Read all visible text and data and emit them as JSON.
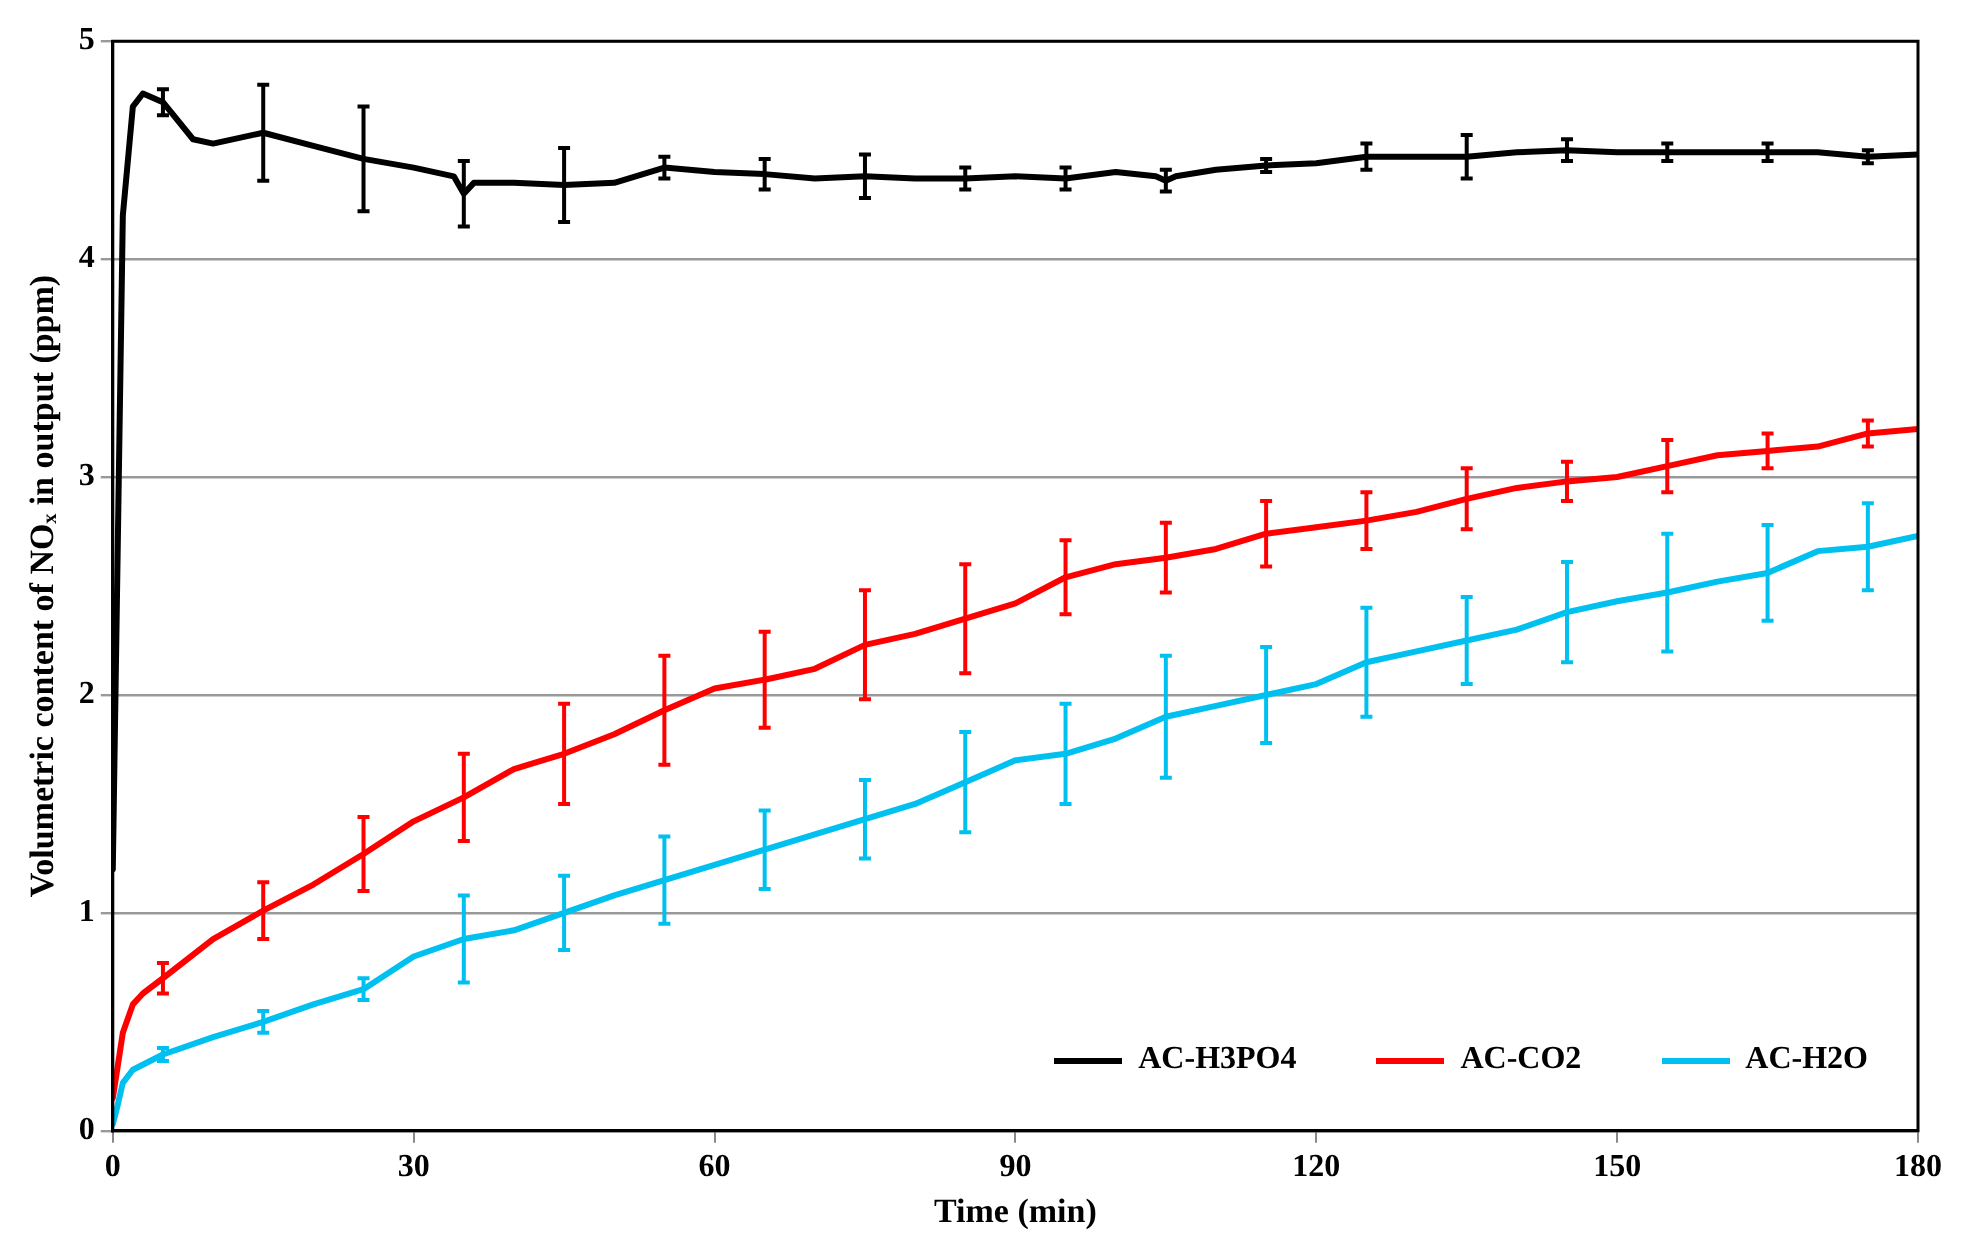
{
  "chart_data": {
    "type": "line",
    "xlabel": "Time (min)",
    "ylabel": "Volumetric content of NOₓ in output (ppm)",
    "xlim": [
      0,
      180
    ],
    "xticks": [
      0,
      30,
      60,
      90,
      120,
      150,
      180
    ],
    "ylim": [
      0,
      5
    ],
    "yticks": [
      0,
      1,
      2,
      3,
      4,
      5
    ],
    "grid": "y",
    "legend": "bottom right",
    "marker": "none",
    "line_style": "solid",
    "series": [
      {
        "name": "AC-H3PO4",
        "color": "#000000",
        "x": [
          0,
          1,
          2,
          3,
          5,
          8,
          10,
          15,
          20,
          25,
          30,
          34,
          35,
          36,
          40,
          45,
          50,
          55,
          60,
          65,
          70,
          75,
          80,
          85,
          90,
          95,
          100,
          104,
          105,
          106,
          110,
          115,
          120,
          125,
          130,
          135,
          140,
          145,
          150,
          155,
          160,
          165,
          170,
          175,
          180
        ],
        "values": [
          1.2,
          4.2,
          4.7,
          4.76,
          4.72,
          4.55,
          4.53,
          4.58,
          4.52,
          4.46,
          4.42,
          4.38,
          4.3,
          4.35,
          4.35,
          4.34,
          4.35,
          4.42,
          4.4,
          4.39,
          4.37,
          4.38,
          4.37,
          4.37,
          4.38,
          4.37,
          4.4,
          4.38,
          4.36,
          4.38,
          4.41,
          4.43,
          4.44,
          4.47,
          4.47,
          4.47,
          4.49,
          4.5,
          4.49,
          4.49,
          4.49,
          4.49,
          4.49,
          4.47,
          4.48
        ],
        "errors": [
          null,
          null,
          null,
          null,
          0.06,
          null,
          null,
          0.22,
          null,
          0.24,
          null,
          null,
          0.15,
          null,
          null,
          0.17,
          null,
          0.05,
          null,
          0.07,
          null,
          0.1,
          null,
          0.05,
          null,
          0.05,
          null,
          null,
          0.05,
          null,
          null,
          0.03,
          null,
          0.06,
          null,
          0.1,
          null,
          0.05,
          null,
          0.04,
          null,
          0.04,
          null,
          0.03,
          null
        ]
      },
      {
        "name": "AC-CO2",
        "color": "#ff0000",
        "x": [
          0,
          0.5,
          1,
          2,
          3,
          5,
          10,
          15,
          20,
          25,
          30,
          35,
          40,
          45,
          50,
          55,
          60,
          65,
          70,
          75,
          80,
          85,
          90,
          95,
          100,
          105,
          110,
          115,
          120,
          125,
          130,
          135,
          140,
          145,
          150,
          155,
          160,
          165,
          170,
          175,
          180
        ],
        "values": [
          0.15,
          0.3,
          0.45,
          0.58,
          0.63,
          0.7,
          0.88,
          1.01,
          1.13,
          1.27,
          1.42,
          1.53,
          1.66,
          1.73,
          1.82,
          1.93,
          2.03,
          2.07,
          2.12,
          2.23,
          2.28,
          2.35,
          2.42,
          2.54,
          2.6,
          2.63,
          2.67,
          2.74,
          2.77,
          2.8,
          2.84,
          2.9,
          2.95,
          2.98,
          3.0,
          3.05,
          3.1,
          3.12,
          3.14,
          3.2,
          3.22
        ],
        "errors": [
          null,
          null,
          null,
          null,
          null,
          0.07,
          null,
          0.13,
          null,
          0.17,
          null,
          0.2,
          null,
          0.23,
          null,
          0.25,
          null,
          0.22,
          null,
          0.25,
          null,
          0.25,
          null,
          0.17,
          null,
          0.16,
          null,
          0.15,
          null,
          0.13,
          null,
          0.14,
          null,
          0.09,
          null,
          0.12,
          null,
          0.08,
          null,
          0.06,
          null
        ]
      },
      {
        "name": "AC-H2O",
        "color": "#00c0f0",
        "x": [
          0,
          0.5,
          1,
          2,
          5,
          10,
          15,
          20,
          25,
          30,
          35,
          40,
          45,
          50,
          55,
          60,
          65,
          70,
          75,
          80,
          85,
          90,
          95,
          100,
          105,
          110,
          115,
          120,
          125,
          130,
          135,
          140,
          145,
          150,
          155,
          160,
          165,
          170,
          175,
          180
        ],
        "values": [
          0.03,
          0.12,
          0.22,
          0.28,
          0.35,
          0.43,
          0.5,
          0.58,
          0.65,
          0.8,
          0.88,
          0.92,
          1.0,
          1.08,
          1.15,
          1.22,
          1.29,
          1.36,
          1.43,
          1.5,
          1.6,
          1.7,
          1.73,
          1.8,
          1.9,
          1.95,
          2.0,
          2.05,
          2.15,
          2.2,
          2.25,
          2.3,
          2.38,
          2.43,
          2.47,
          2.52,
          2.56,
          2.66,
          2.68,
          2.73
        ],
        "errors": [
          null,
          null,
          null,
          null,
          0.03,
          null,
          0.05,
          null,
          0.05,
          null,
          0.2,
          null,
          0.17,
          null,
          0.2,
          null,
          0.18,
          null,
          0.18,
          null,
          0.23,
          null,
          0.23,
          null,
          0.28,
          null,
          0.22,
          null,
          0.25,
          null,
          0.2,
          null,
          0.23,
          null,
          0.27,
          null,
          0.22,
          null,
          0.2,
          null
        ]
      }
    ]
  }
}
